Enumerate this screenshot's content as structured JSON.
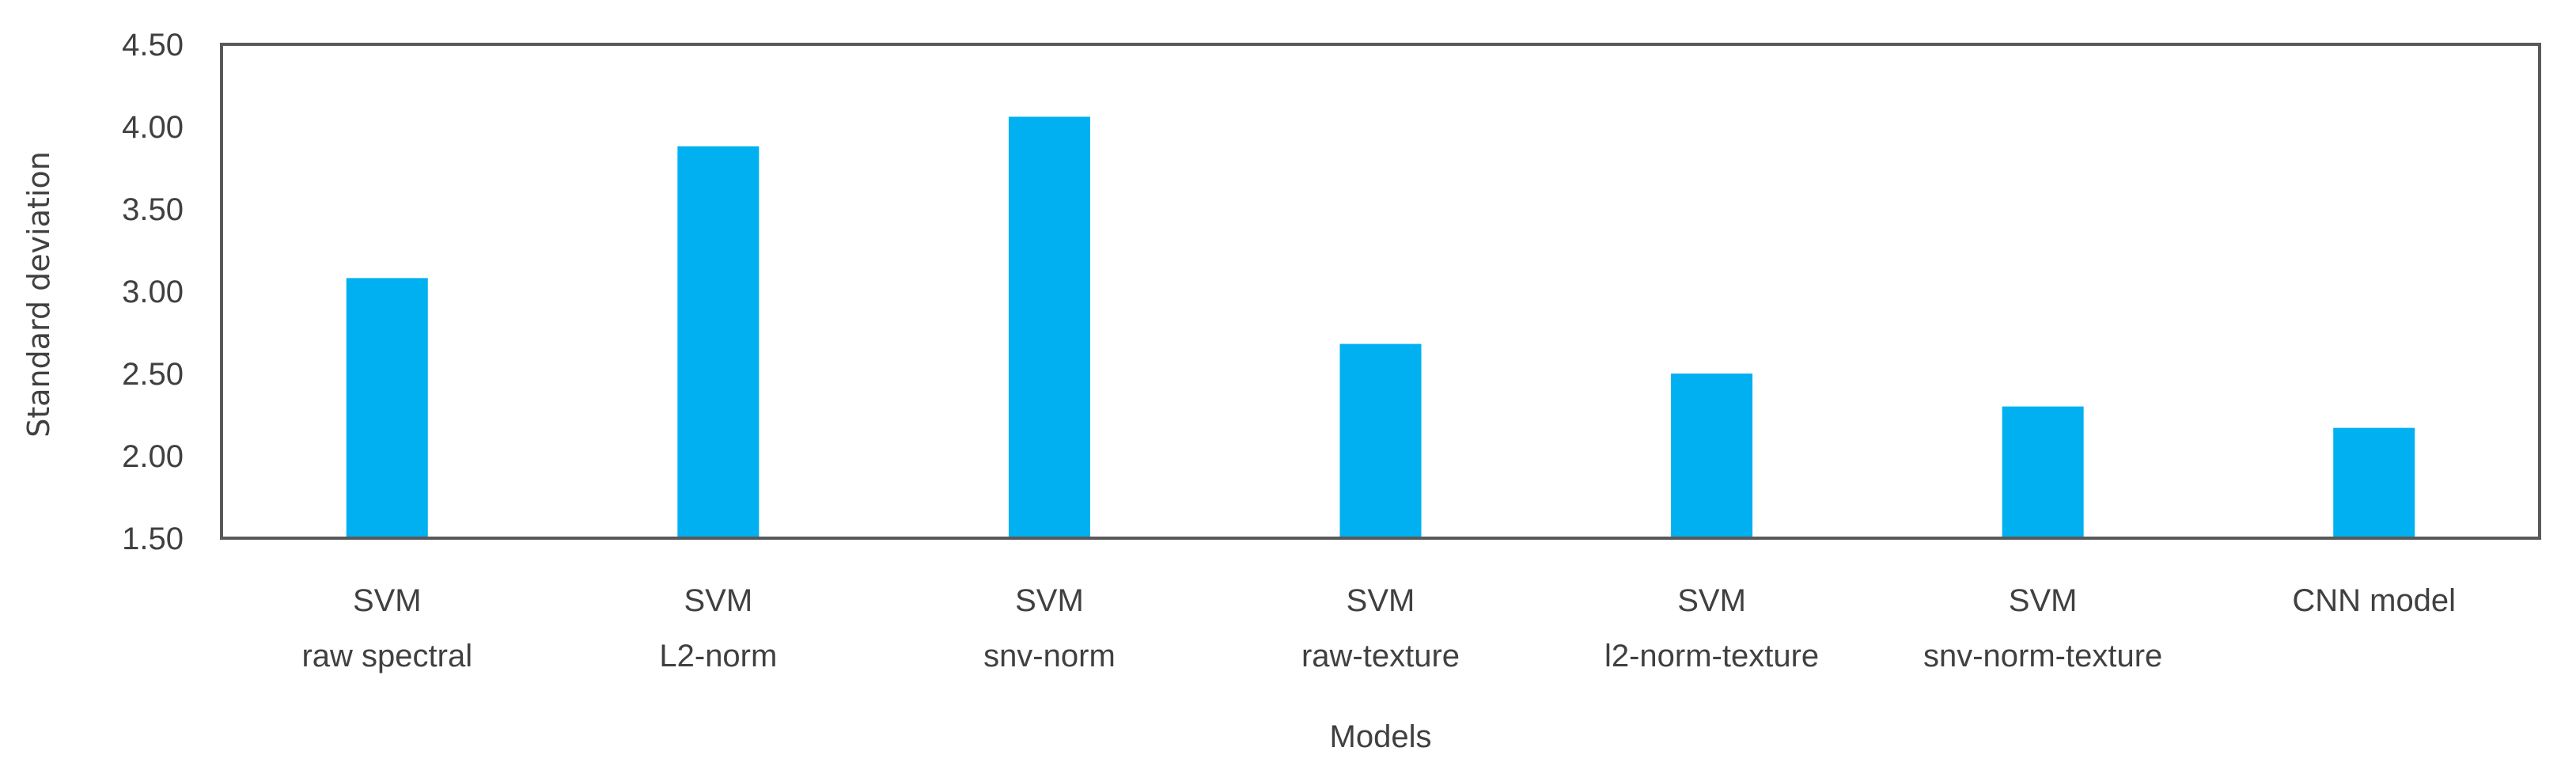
{
  "chart_data": {
    "type": "bar",
    "title": "",
    "xlabel": "Models",
    "ylabel": "Standard deviation",
    "ylim": [
      1.5,
      4.5
    ],
    "yticks": [
      "1.50",
      "2.00",
      "2.50",
      "3.00",
      "3.50",
      "4.00",
      "4.50"
    ],
    "grid": false,
    "legend": "none",
    "bar_color": "#00B0F0",
    "categories": [
      [
        "SVM",
        "raw spectral"
      ],
      [
        "SVM",
        "L2-norm"
      ],
      [
        "SVM",
        "snv-norm"
      ],
      [
        "SVM",
        "raw-texture"
      ],
      [
        "SVM",
        "l2-norm-texture"
      ],
      [
        "SVM",
        "snv-norm-texture"
      ],
      [
        "CNN model",
        ""
      ]
    ],
    "values": [
      3.08,
      3.88,
      4.06,
      2.68,
      2.5,
      2.3,
      2.17
    ]
  }
}
